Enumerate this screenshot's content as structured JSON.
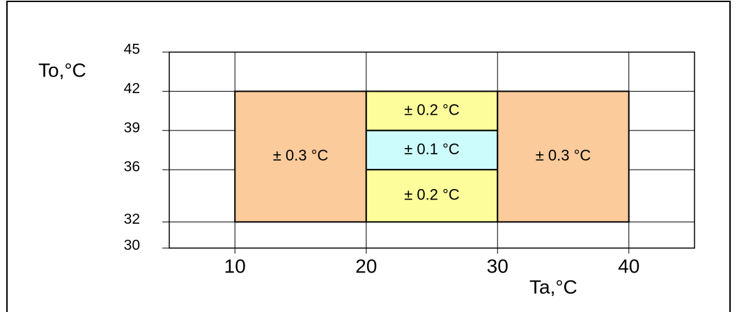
{
  "chart_data": {
    "type": "region",
    "y_label": "To,°C",
    "x_label": "Ta,°C",
    "xlim": [
      5,
      45
    ],
    "xticks": [
      10,
      20,
      30,
      40
    ],
    "ylim": [
      30,
      45
    ],
    "yticks": [
      30,
      32,
      36,
      39,
      42,
      45
    ],
    "grid": true,
    "regions": [
      {
        "x": [
          10,
          20
        ],
        "y": [
          32,
          42
        ],
        "color": "#fbcb9b",
        "label": "± 0.3 °C"
      },
      {
        "x": [
          20,
          30
        ],
        "y": [
          39,
          42
        ],
        "color": "#fdfd9b",
        "label": "± 0.2 °C"
      },
      {
        "x": [
          20,
          30
        ],
        "y": [
          36,
          39
        ],
        "color": "#ccfcfc",
        "label": "± 0.1 °C"
      },
      {
        "x": [
          20,
          30
        ],
        "y": [
          32,
          36
        ],
        "color": "#fdfd9b",
        "label": "± 0.2 °C"
      },
      {
        "x": [
          30,
          40
        ],
        "y": [
          32,
          42
        ],
        "color": "#fbcb9b",
        "label": "± 0.3 °C"
      }
    ]
  }
}
